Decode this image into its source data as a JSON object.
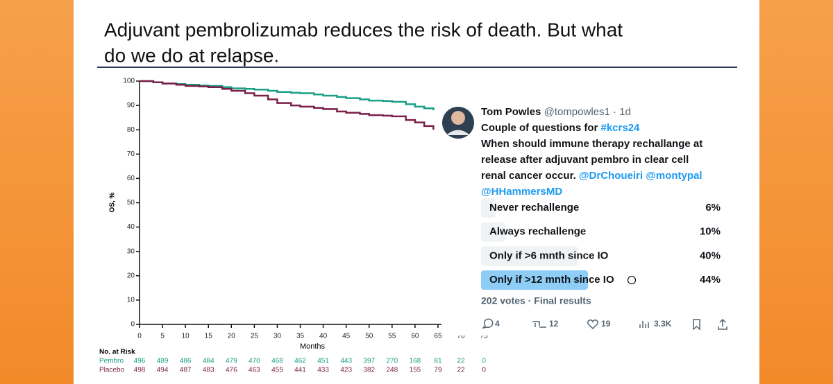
{
  "slide_title": [
    "Adjuvant pembrolizumab reduces the risk of death. But what",
    "do we do at relapse."
  ],
  "chart_data": {
    "type": "line",
    "step": true,
    "x": [
      0,
      3,
      5,
      8,
      10,
      13,
      15,
      18,
      20,
      23,
      25,
      28,
      30,
      33,
      35,
      38,
      40,
      43,
      45,
      48,
      50,
      53,
      55,
      58,
      60,
      62,
      64
    ],
    "series": [
      {
        "name": "Pembro",
        "color": "#1a9e86",
        "values": [
          100,
          99.5,
          99,
          98.8,
          98.5,
          98.2,
          98,
          97.5,
          97,
          96.8,
          96.5,
          96,
          95.5,
          95.2,
          95,
          94.5,
          94,
          93.5,
          93,
          92.5,
          92,
          91.8,
          91.5,
          90.5,
          89.5,
          88.8,
          88
        ]
      },
      {
        "name": "Placebo",
        "color": "#7a1f48",
        "values": [
          100,
          99.5,
          99,
          98.5,
          98,
          97.8,
          97.5,
          96.8,
          96,
          95,
          94,
          92.5,
          91,
          90,
          89.5,
          89,
          88.5,
          87.5,
          87,
          86.5,
          86,
          85.8,
          85.5,
          84,
          83,
          81.5,
          80
        ]
      }
    ],
    "xlabel": "Months",
    "ylabel": "OS, %",
    "xlim": [
      0,
      75
    ],
    "xticks": [
      0,
      5,
      10,
      15,
      20,
      25,
      30,
      35,
      40,
      45,
      50,
      55,
      60,
      65,
      70,
      75
    ],
    "ylim": [
      0,
      100
    ],
    "yticks": [
      0,
      10,
      20,
      30,
      40,
      50,
      60,
      70,
      80,
      90,
      100
    ],
    "at_risk": {
      "title": "No. at Risk",
      "rows": [
        {
          "name": "Pembro",
          "values": [
            496,
            489,
            486,
            484,
            479,
            470,
            468,
            462,
            451,
            443,
            397,
            270,
            168,
            81,
            22,
            0
          ]
        },
        {
          "name": "Placebo",
          "values": [
            498,
            494,
            487,
            483,
            476,
            463,
            455,
            441,
            433,
            423,
            382,
            248,
            155,
            79,
            22,
            0
          ]
        }
      ]
    }
  },
  "tweet": {
    "name": "Tom Powles",
    "handle": " @tompowles1 · 1d",
    "body": [
      [
        {
          "text": "Couple of questions for ",
          "link": false
        },
        {
          "text": "#kcrs24",
          "link": true
        }
      ],
      [
        {
          "text": "When should immune therapy rechallange at",
          "link": false
        }
      ],
      [
        {
          "text": "release after adjuvant pembro in clear cell",
          "link": false
        }
      ],
      [
        {
          "text": "renal cancer occur. ",
          "link": false
        },
        {
          "text": "@DrChoueiri",
          "link": true
        },
        {
          "text": " ",
          "link": false
        },
        {
          "text": "@montypal",
          "link": true
        }
      ],
      [
        {
          "text": "@HHammersMD",
          "link": true
        }
      ]
    ],
    "poll": {
      "options": [
        "Never rechallenge",
        "Always rechallenge",
        "Only if >6 mnth since IO",
        "Only if >12 mnth since IO"
      ],
      "values": [
        6,
        10,
        40,
        44
      ],
      "value_labels": [
        "6%",
        "10%",
        "40%",
        "44%"
      ],
      "winner": 3,
      "summary": "202 votes · Final results"
    },
    "actions": [
      "4",
      "12",
      "19",
      "3.3K"
    ]
  }
}
